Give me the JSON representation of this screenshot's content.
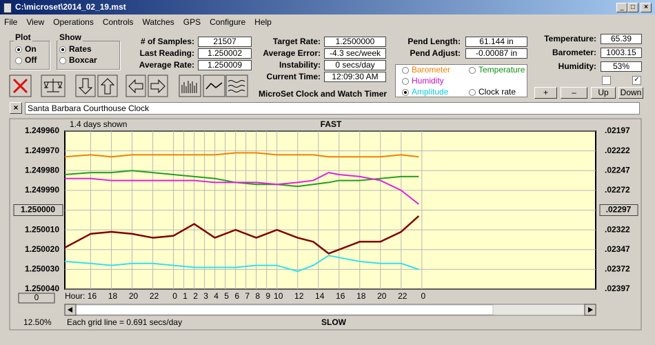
{
  "window": {
    "title": "C:\\microset\\2014_02_19.mst"
  },
  "menu": [
    "File",
    "View",
    "Operations",
    "Controls",
    "Watches",
    "GPS",
    "Configure",
    "Help"
  ],
  "plot": {
    "label": "Plot",
    "options": [
      "On",
      "Off"
    ]
  },
  "show": {
    "label": "Show",
    "options": [
      "Rates",
      "Boxcar"
    ]
  },
  "stats": [
    {
      "label": "# of Samples:",
      "value": "21507"
    },
    {
      "label": "Last Reading:",
      "value": "1.250002"
    },
    {
      "label": "Average Rate:",
      "value": "1.250009"
    }
  ],
  "rates": [
    {
      "label": "Target Rate:",
      "value": "1.2500000"
    },
    {
      "label": "Average Error:",
      "value": "-4.3 sec/week"
    },
    {
      "label": "Instability:",
      "value": "0 secs/day"
    },
    {
      "label": "Current Time:",
      "value": "12:09:30 AM"
    }
  ],
  "pendulum": [
    {
      "label": "Pend Length:",
      "value": "61.144 in"
    },
    {
      "label": "Pend Adjust:",
      "value": "-0.00087 in"
    }
  ],
  "sensors": [
    {
      "label": "Temperature:",
      "value": "65.39"
    },
    {
      "label": "Barometer:",
      "value": "1003.15"
    },
    {
      "label": "Humidity:",
      "value": "53%"
    }
  ],
  "graph_options": [
    {
      "label": "Barometer",
      "color": "#f08000"
    },
    {
      "label": "Temperature",
      "color": "#109010"
    },
    {
      "label": "Humidity",
      "color": "#c010c0"
    },
    {
      "label": "Amplitude",
      "color": "#10c8e0"
    },
    {
      "label": "Clock rate",
      "color": "#000000"
    }
  ],
  "adjust_buttons": [
    "+",
    "–",
    "Up",
    "Down"
  ],
  "app_name": "MicroSet Clock and Watch Timer",
  "clock_name": "Santa Barbara Courthouse Clock",
  "chart_data": {
    "type": "line",
    "title": "FAST",
    "subtitle": "1.4 days shown",
    "footer": "SLOW",
    "x_label": "Hour:",
    "zoom": "12.50%",
    "grid_note": "Each grid line = 0.691 secs/day",
    "offset_button": "0",
    "x": [
      13.5,
      16,
      18,
      20,
      22,
      24,
      26,
      28,
      30,
      32,
      34,
      36,
      37.5,
      39,
      40,
      42,
      44,
      46,
      47.7
    ],
    "xlim": [
      13.5,
      64.8
    ],
    "xticks": [
      {
        "value": 16,
        "label": "16"
      },
      {
        "value": 18,
        "label": "18"
      },
      {
        "value": 20,
        "label": "20"
      },
      {
        "value": 22,
        "label": "22"
      },
      {
        "value": 24,
        "label": "0"
      },
      {
        "value": 25,
        "label": "1"
      },
      {
        "value": 26,
        "label": "2"
      },
      {
        "value": 27,
        "label": "3"
      },
      {
        "value": 28,
        "label": "4"
      },
      {
        "value": 29,
        "label": "5"
      },
      {
        "value": 30,
        "label": "6"
      },
      {
        "value": 31,
        "label": "7"
      },
      {
        "value": 32,
        "label": "8"
      },
      {
        "value": 33,
        "label": "9"
      },
      {
        "value": 34,
        "label": "10"
      },
      {
        "value": 36,
        "label": "12"
      },
      {
        "value": 38,
        "label": "14"
      },
      {
        "value": 40,
        "label": "16"
      },
      {
        "value": 42,
        "label": "18"
      },
      {
        "value": 44,
        "label": "20"
      },
      {
        "value": 46,
        "label": "22"
      },
      {
        "value": 48,
        "label": "0"
      }
    ],
    "ylim": [
      1.24996,
      1.25004
    ],
    "y_inverted": true,
    "yticks": [
      {
        "value": 1.24996,
        "label": "1.249960"
      },
      {
        "value": 1.24997,
        "label": "1.249970"
      },
      {
        "value": 1.24998,
        "label": "1.249980"
      },
      {
        "value": 1.24999,
        "label": "1.249990"
      },
      {
        "value": 1.25,
        "label": "1.250000"
      },
      {
        "value": 1.25001,
        "label": "1.250010"
      },
      {
        "value": 1.25002,
        "label": "1.250020"
      },
      {
        "value": 1.25003,
        "label": "1.250030"
      },
      {
        "value": 1.25004,
        "label": "1.250040"
      }
    ],
    "y2lim": [
      0.02197,
      0.02397
    ],
    "y2ticks": [
      {
        "value": 0.02197,
        "label": ".02197"
      },
      {
        "value": 0.02222,
        "label": ".02222"
      },
      {
        "value": 0.02247,
        "label": ".02247"
      },
      {
        "value": 0.02272,
        "label": ".02272"
      },
      {
        "value": 0.02297,
        "label": ".02297"
      },
      {
        "value": 0.02322,
        "label": ".02322"
      },
      {
        "value": 0.02347,
        "label": ".02347"
      },
      {
        "value": 0.02372,
        "label": ".02372"
      },
      {
        "value": 0.02397,
        "label": ".02397"
      }
    ],
    "grid": true,
    "series": [
      {
        "color": "#f08000",
        "values": [
          1.249973,
          1.249972,
          1.249973,
          1.249972,
          1.249972,
          1.249972,
          1.249972,
          1.249972,
          1.249971,
          1.249971,
          1.249972,
          1.249972,
          1.249972,
          1.249973,
          1.249973,
          1.249973,
          1.249973,
          1.249972,
          1.249973
        ]
      },
      {
        "color": "#20a020",
        "values": [
          1.249982,
          1.249981,
          1.249981,
          1.24998,
          1.249981,
          1.249982,
          1.249983,
          1.249984,
          1.249986,
          1.249987,
          1.249987,
          1.249988,
          1.249987,
          1.249986,
          1.249985,
          1.249985,
          1.249984,
          1.249983,
          1.249983
        ]
      },
      {
        "color": "#e020e0",
        "values": [
          1.249984,
          1.249984,
          1.249985,
          1.249985,
          1.249985,
          1.249985,
          1.249985,
          1.249986,
          1.249986,
          1.249986,
          1.249987,
          1.249986,
          1.249985,
          1.249981,
          1.249982,
          1.249983,
          1.249985,
          1.24999,
          1.249997
        ]
      },
      {
        "color": "#800000",
        "values": [
          1.250019,
          1.250012,
          1.250011,
          1.250012,
          1.250014,
          1.250013,
          1.250007,
          1.250014,
          1.25001,
          1.250014,
          1.25001,
          1.250014,
          1.250016,
          1.250022,
          1.25002,
          1.250016,
          1.250016,
          1.250011,
          1.250003
        ]
      },
      {
        "color": "#30e0f0",
        "values": [
          1.250026,
          1.250027,
          1.250028,
          1.250027,
          1.250027,
          1.250028,
          1.250029,
          1.250029,
          1.250029,
          1.250028,
          1.250028,
          1.250031,
          1.250028,
          1.250023,
          1.250024,
          1.250026,
          1.250027,
          1.250027,
          1.25003
        ]
      }
    ]
  }
}
